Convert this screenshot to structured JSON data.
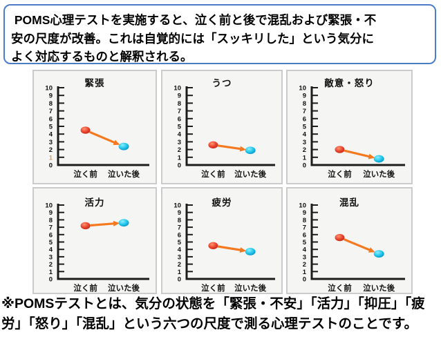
{
  "header": {
    "border_color": "#4A7CC7",
    "lines": [
      " POMS心理テストを実施すると、泣く前と後で混乱および緊張・不",
      "安の尺度が改善。これは自覚的には「スッキリした」という気分に",
      "よく対応するものと解釈される。"
    ]
  },
  "footer": {
    "lines": [
      "※POMSテストとは、気分の状態を「緊張・不安」「活力」「抑圧」「疲",
      "労」「怒り」「混乱」という六つの尺度で測る心理テストのことです。"
    ]
  },
  "chart_style": {
    "panel_bg": "#F5F5F4",
    "panel_border": "#CBCBCB",
    "axis_color": "#1C1C1C",
    "tick_label_color": "#111111",
    "arrow_color": "#F5791E",
    "before_point_colors": [
      "#FF9673",
      "#E8402A",
      "#B2281A"
    ],
    "after_point_colors": [
      "#8CEFFF",
      "#1EC3EA",
      "#0A88BC"
    ],
    "highlight_tick_color": "#DB9A5E"
  },
  "chart_data": [
    {
      "type": "scatter",
      "key": "tension",
      "title": "緊張",
      "categories": [
        "泣く前",
        "泣いた後"
      ],
      "values": [
        4.5,
        2.4
      ],
      "ylim": [
        0,
        10
      ],
      "ytick_step": 1,
      "arrow": true,
      "tick_highlight": {
        "label": "1"
      }
    },
    {
      "type": "scatter",
      "key": "depression",
      "title": "うつ",
      "categories": [
        "泣く前",
        "泣いた後"
      ],
      "values": [
        2.6,
        1.9
      ],
      "ylim": [
        0,
        10
      ],
      "ytick_step": 1,
      "arrow": true
    },
    {
      "type": "scatter",
      "key": "hostility-anger",
      "title": "敵意・怒り",
      "categories": [
        "泣く前",
        "泣いた後"
      ],
      "values": [
        2.0,
        0.8
      ],
      "ylim": [
        0,
        10
      ],
      "ytick_step": 1,
      "arrow": true
    },
    {
      "type": "scatter",
      "key": "vigor",
      "title": "活力",
      "categories": [
        "泣く前",
        "泣いた後"
      ],
      "values": [
        7.2,
        7.6
      ],
      "ylim": [
        0,
        10
      ],
      "ytick_step": 1,
      "arrow": true
    },
    {
      "type": "scatter",
      "key": "fatigue",
      "title": "疲労",
      "categories": [
        "泣く前",
        "泣いた後"
      ],
      "values": [
        4.5,
        3.7
      ],
      "ylim": [
        0,
        10
      ],
      "ytick_step": 1,
      "arrow": true
    },
    {
      "type": "scatter",
      "key": "confusion",
      "title": "混乱",
      "categories": [
        "泣く前",
        "泣いた後"
      ],
      "values": [
        5.6,
        3.4
      ],
      "ylim": [
        0,
        10
      ],
      "ytick_step": 1,
      "arrow": true
    }
  ]
}
